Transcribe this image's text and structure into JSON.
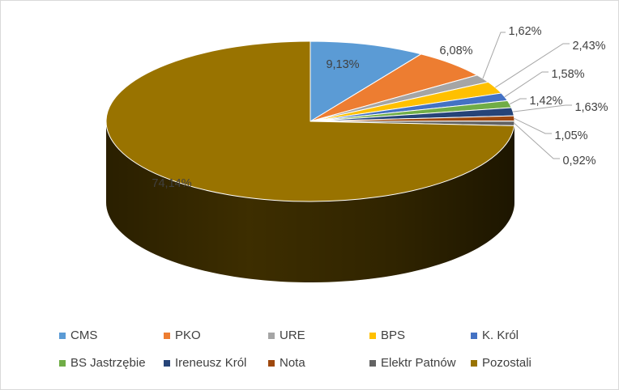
{
  "chart_data": {
    "type": "pie",
    "title": "",
    "categories": [
      "CMS",
      "PKO",
      "URE",
      "BPS",
      "K. Król",
      "BS Jastrzębie",
      "Ireneusz Król",
      "Nota",
      "Elektr Patnów",
      "Pozostali"
    ],
    "values": [
      9.13,
      6.08,
      1.62,
      2.43,
      1.58,
      1.42,
      1.63,
      1.05,
      0.92,
      74.14
    ],
    "data_labels": [
      "9,13%",
      "6,08%",
      "1,62%",
      "2,43%",
      "1,58%",
      "1,42%",
      "1,63%",
      "1,05%",
      "0,92%",
      "74,14%"
    ],
    "colors": [
      "#5b9bd5",
      "#ed7d31",
      "#a5a5a5",
      "#ffc000",
      "#4472c4",
      "#70ad47",
      "#264478",
      "#9e480e",
      "#636363",
      "#997300"
    ],
    "legend_position": "bottom",
    "style": "3d"
  }
}
